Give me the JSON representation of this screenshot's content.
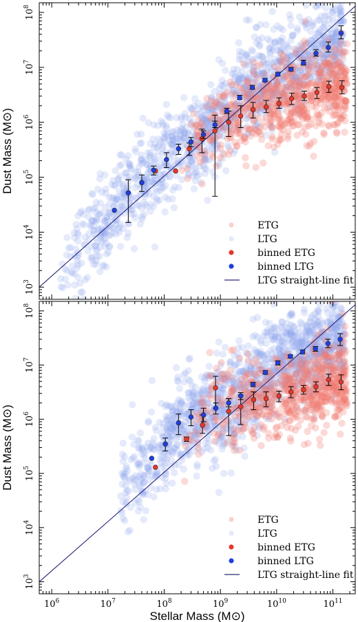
{
  "colors": {
    "etg": "#e8372b",
    "ltg": "#1f3fe0",
    "etg_faint": "#f07a70",
    "ltg_faint": "#8ea3ee",
    "fit_line": "#2a2a7a",
    "axis": "#000000"
  },
  "chart_data": [
    {
      "type": "scatter",
      "panel": "top",
      "xscale": "log",
      "yscale": "log",
      "xlim": [
        600000.0,
        250000000000.0
      ],
      "ylim": [
        600.0,
        150000000.0
      ],
      "xlabel": "",
      "ylabel": "Dust Mass",
      "ylabel_unit": "(M⊙)",
      "x_ticks": [
        "10^6",
        "10^7",
        "10^8",
        "10^9",
        "10^10",
        "10^11"
      ],
      "y_ticks": [
        "10^3",
        "10^4",
        "10^5",
        "10^6",
        "10^7",
        "10^8"
      ],
      "legend_position": "bottom-right",
      "legend": [
        "ETG",
        "LTG",
        "binned ETG",
        "binned LTG",
        "LTG straight-line fit"
      ],
      "fit_line": {
        "x": [
          600000.0,
          250000000000.0
        ],
        "y": [
          1000.0,
          130000000.0
        ]
      },
      "binned_ltg": {
        "x": [
          13000000.0,
          23000000.0,
          40000000.0,
          65000000.0,
          110000000.0,
          180000000.0,
          300000000.0,
          500000000.0,
          800000000.0,
          1300000000.0,
          2200000000.0,
          3700000000.0,
          6200000000.0,
          10500000000.0,
          18000000000.0,
          30000000000.0,
          50000000000.0,
          83000000000.0,
          140000000000.0
        ],
        "y": [
          25000.0,
          52000.0,
          80000.0,
          135000.0,
          210000.0,
          330000.0,
          440000.0,
          600000.0,
          900000.0,
          1600000.0,
          2800000.0,
          4300000.0,
          5800000.0,
          7500000.0,
          9200000.0,
          12000000.0,
          18000000.0,
          23000000.0,
          42000000.0
        ],
        "err_lo": [
          25000.0,
          15000.0,
          55000.0,
          110000.0,
          150000.0,
          260000.0,
          360000.0,
          510000.0,
          800000.0,
          1450000.0,
          2600000.0,
          4000000.0,
          5500000.0,
          7000000.0,
          8600000.0,
          11000000.0,
          16000000.0,
          19000000.0,
          33000000.0
        ],
        "err_hi": [
          25000.0,
          90000.0,
          110000.0,
          160000.0,
          280000.0,
          400000.0,
          530000.0,
          700000.0,
          1050000.0,
          1800000.0,
          3100000.0,
          4700000.0,
          6300000.0,
          8100000.0,
          10000000.0,
          13500000.0,
          21000000.0,
          29000000.0,
          57000000.0
        ]
      },
      "binned_etg": {
        "x": [
          70000000.0,
          160000000.0,
          280000000.0,
          470000000.0,
          800000000.0,
          1400000000.0,
          2300000000.0,
          3800000000.0,
          6500000000.0,
          11000000000.0,
          18500000000.0,
          31000000000.0,
          52000000000.0,
          85000000000.0,
          145000000000.0
        ],
        "y": [
          130000.0,
          130000.0,
          330000.0,
          500000.0,
          700000.0,
          1000000.0,
          1300000.0,
          1700000.0,
          1900000.0,
          2200000.0,
          2700000.0,
          3000000.0,
          3500000.0,
          4500000.0,
          4300000.0
        ],
        "err_lo": [
          130000.0,
          130000.0,
          250000.0,
          280000.0,
          45000.0,
          550000.0,
          800000.0,
          1200000.0,
          1500000.0,
          1800000.0,
          2100000.0,
          2500000.0,
          2700000.0,
          3500000.0,
          3300000.0
        ],
        "err_hi": [
          130000.0,
          130000.0,
          420000.0,
          750000.0,
          1350000.0,
          1600000.0,
          2000000.0,
          2300000.0,
          2500000.0,
          2800000.0,
          3400000.0,
          3700000.0,
          4300000.0,
          5600000.0,
          5700000.0
        ]
      }
    },
    {
      "type": "scatter",
      "panel": "bottom",
      "xscale": "log",
      "yscale": "log",
      "xlim": [
        600000.0,
        250000000000.0
      ],
      "ylim": [
        600.0,
        150000000.0
      ],
      "xlabel": "Stellar Mass",
      "xlabel_unit": "(M⊙)",
      "ylabel": "Dust Mass",
      "ylabel_unit": "(M⊙)",
      "x_ticks": [
        "10^6",
        "10^7",
        "10^8",
        "10^9",
        "10^10",
        "10^11"
      ],
      "y_ticks": [
        "10^3",
        "10^4",
        "10^5",
        "10^6",
        "10^7",
        "10^8"
      ],
      "legend_position": "bottom-right",
      "legend": [
        "ETG",
        "LTG",
        "binned ETG",
        "binned LTG",
        "LTG straight-line fit"
      ],
      "fit_line": {
        "x": [
          600000.0,
          250000000000.0
        ],
        "y": [
          1000.0,
          130000000.0
        ]
      },
      "binned_ltg": {
        "x": [
          60000000.0,
          105000000.0,
          180000000.0,
          300000000.0,
          500000000.0,
          830000000.0,
          1400000000.0,
          2300000000.0,
          3800000000.0,
          6300000000.0,
          10500000000.0,
          17500000000.0,
          29000000000.0,
          49000000000.0,
          82000000000.0,
          135000000000.0
        ],
        "y": [
          190000.0,
          350000.0,
          860000.0,
          1100000.0,
          1200000.0,
          1600000.0,
          2000000.0,
          2700000.0,
          4400000.0,
          7300000.0,
          11000000.0,
          14500000.0,
          17500000.0,
          20000000.0,
          25000000.0,
          30000000.0
        ],
        "err_lo": [
          190000.0,
          260000.0,
          520000.0,
          760000.0,
          900000.0,
          1250000.0,
          1700000.0,
          2300000.0,
          4000000.0,
          6800000.0,
          10000000.0,
          13500000.0,
          16200000.0,
          18000000.0,
          21000000.0,
          23000000.0
        ],
        "err_hi": [
          190000.0,
          450000.0,
          1250000.0,
          1500000.0,
          1600000.0,
          2000000.0,
          2400000.0,
          3100000.0,
          4800000.0,
          7900000.0,
          12000000.0,
          15500000.0,
          19000000.0,
          22000000.0,
          30000000.0,
          38000000.0
        ]
      },
      "binned_etg": {
        "x": [
          70000000.0,
          250000000.0,
          480000000.0,
          820000000.0,
          1400000000.0,
          2300000000.0,
          3900000000.0,
          6500000000.0,
          11000000000.0,
          18000000000.0,
          30000000000.0,
          50000000000.0,
          84000000000.0,
          140000000000.0
        ],
        "y": [
          130000.0,
          430000.0,
          780000.0,
          3800000.0,
          1400000.0,
          1700000.0,
          2300000.0,
          2400000.0,
          2700000.0,
          3200000.0,
          3500000.0,
          4000000.0,
          5400000.0,
          4900000.0
        ],
        "err_lo": [
          130000.0,
          390000.0,
          550000.0,
          1600000.0,
          500000.0,
          800000.0,
          1500000.0,
          1700000.0,
          2100000.0,
          2500000.0,
          2900000.0,
          3200000.0,
          4200000.0,
          3500000.0
        ],
        "err_hi": [
          130000.0,
          470000.0,
          1200000.0,
          6200000.0,
          2400000.0,
          2800000.0,
          3200000.0,
          3200000.0,
          3300000.0,
          4000000.0,
          4200000.0,
          4900000.0,
          6800000.0,
          6600000.0
        ]
      }
    }
  ]
}
